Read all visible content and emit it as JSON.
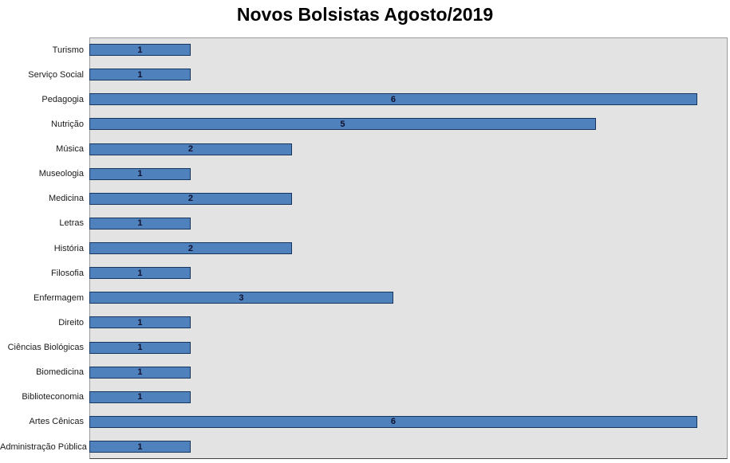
{
  "title": "Novos Bolsistas Agosto/2019",
  "chart_data": {
    "type": "bar",
    "orientation": "horizontal",
    "title": "Novos Bolsistas Agosto/2019",
    "categories": [
      "Turismo",
      "Serviço Social",
      "Pedagogia",
      "Nutrição",
      "Música",
      "Museologia",
      "Medicina",
      "Letras",
      "História",
      "Filosofia",
      "Enfermagem",
      "Direito",
      "Ciências Biológicas",
      "Biomedicina",
      "Biblioteconomia",
      "Artes Cênicas",
      "Administração Pública"
    ],
    "values": [
      1,
      1,
      6,
      5,
      2,
      1,
      2,
      1,
      2,
      1,
      3,
      1,
      1,
      1,
      1,
      6,
      1
    ],
    "data_labels_position": "inside-center",
    "xlabel": "",
    "ylabel": "",
    "xlim": [
      0,
      6.3
    ],
    "grid": false,
    "legend": false,
    "colors": {
      "bar_fill": "#4F81BD",
      "bar_border": "#17365D",
      "plot_background": "#E3E3E3",
      "chart_background": "#FFFFFF",
      "title_color": "#000000",
      "label_color": "#1A1A1A"
    }
  }
}
